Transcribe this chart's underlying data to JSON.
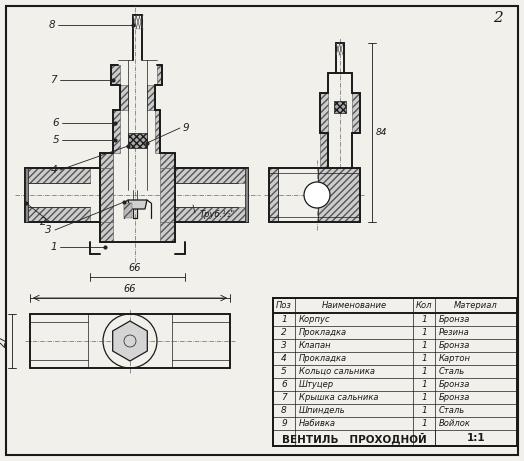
{
  "bg": "#f2f0eb",
  "lc": "#1a1a1a",
  "title_num": "2",
  "table": {
    "headers": [
      "Поз",
      "Наименование",
      "Кол",
      "Материал"
    ],
    "rows": [
      [
        "1",
        "Корпус",
        "1",
        "Бронза"
      ],
      [
        "2",
        "Прокладка",
        "1",
        "Резина"
      ],
      [
        "3",
        "Клапан",
        "1",
        "Бронза"
      ],
      [
        "4",
        "Прокладка",
        "1",
        "Картон"
      ],
      [
        "5",
        "Кольцо сальника",
        "1",
        "Сталь"
      ],
      [
        "6",
        "Штуцер",
        "1",
        "Бронза"
      ],
      [
        "7",
        "Крышка сальника",
        "1",
        "Бронза"
      ],
      [
        "8",
        "Шпиндель",
        "1",
        "Сталь"
      ],
      [
        "9",
        "Набивка",
        "1",
        "Войлок"
      ]
    ],
    "footer_name": "ВЕНТИЛЬ   ПРОХОДНОЙ",
    "footer_scale": "1:1"
  }
}
